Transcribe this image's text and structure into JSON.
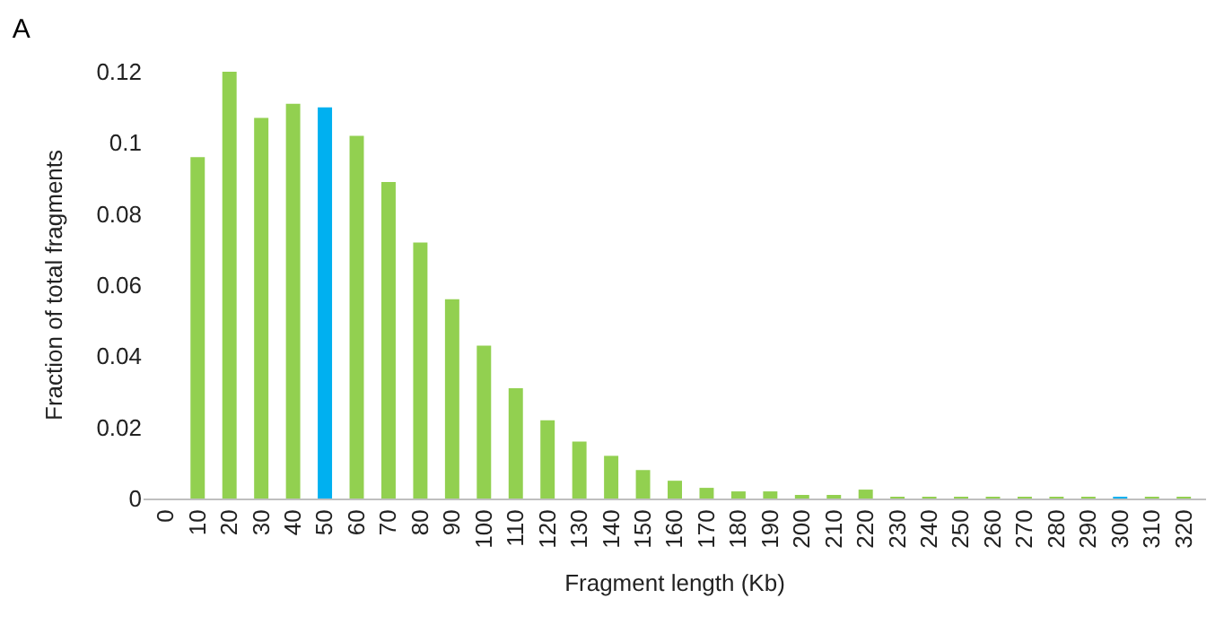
{
  "chart_data": {
    "type": "bar",
    "title": "A",
    "xlabel": "Fragment length (Kb)",
    "ylabel": "Fraction of total fragments",
    "categories": [
      "0",
      "10",
      "20",
      "30",
      "40",
      "50",
      "60",
      "70",
      "80",
      "90",
      "100",
      "110",
      "120",
      "130",
      "140",
      "150",
      "160",
      "170",
      "180",
      "190",
      "200",
      "210",
      "220",
      "230",
      "240",
      "250",
      "260",
      "270",
      "280",
      "290",
      "300",
      "310",
      "320"
    ],
    "values": [
      0,
      0.096,
      0.12,
      0.107,
      0.111,
      0.11,
      0.102,
      0.089,
      0.072,
      0.056,
      0.043,
      0.031,
      0.022,
      0.016,
      0.012,
      0.008,
      0.005,
      0.003,
      0.002,
      0.002,
      0.001,
      0.001,
      0.0025,
      0.0004,
      0.0004,
      0.0004,
      0.0004,
      0.0004,
      0.0004,
      0.0004,
      0.0004,
      0.0004,
      0.0004
    ],
    "colors": [
      "#92d050",
      "#92d050",
      "#92d050",
      "#92d050",
      "#92d050",
      "#00b0f0",
      "#92d050",
      "#92d050",
      "#92d050",
      "#92d050",
      "#92d050",
      "#92d050",
      "#92d050",
      "#92d050",
      "#92d050",
      "#92d050",
      "#92d050",
      "#92d050",
      "#92d050",
      "#92d050",
      "#92d050",
      "#92d050",
      "#92d050",
      "#92d050",
      "#92d050",
      "#92d050",
      "#92d050",
      "#92d050",
      "#92d050",
      "#92d050",
      "#00b0f0",
      "#92d050",
      "#92d050"
    ],
    "ylim": [
      0,
      0.12
    ],
    "yticks": [
      0,
      0.02,
      0.04,
      0.06,
      0.08,
      {
        "value": 0.1,
        "label": "0.1"
      },
      0.12
    ]
  }
}
